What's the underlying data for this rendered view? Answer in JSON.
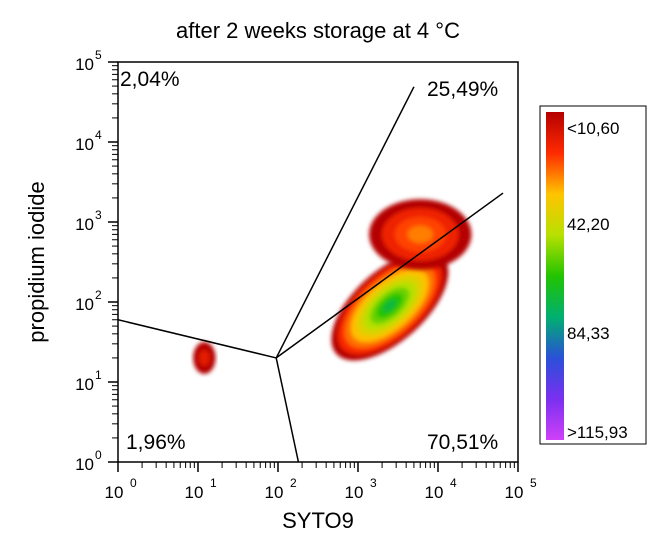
{
  "chart_data": {
    "type": "heatmap",
    "title": "after 2 weeks storage at 4 °C",
    "xlabel": "SYTO9",
    "ylabel": "propidium iodide",
    "x_scale": "log",
    "y_scale": "log",
    "xlim": [
      1,
      100000
    ],
    "ylim": [
      1,
      100000
    ],
    "x_ticks": [
      {
        "value": 1,
        "base": "10",
        "exp": "0"
      },
      {
        "value": 10,
        "base": "10",
        "exp": "1"
      },
      {
        "value": 100,
        "base": "10",
        "exp": "2"
      },
      {
        "value": 1000,
        "base": "10",
        "exp": "3"
      },
      {
        "value": 10000,
        "base": "10",
        "exp": "4"
      },
      {
        "value": 100000,
        "base": "10",
        "exp": "5"
      }
    ],
    "y_ticks": [
      {
        "value": 1,
        "base": "10",
        "exp": "0"
      },
      {
        "value": 10,
        "base": "10",
        "exp": "1"
      },
      {
        "value": 100,
        "base": "10",
        "exp": "2"
      },
      {
        "value": 1000,
        "base": "10",
        "exp": "3"
      },
      {
        "value": 10000,
        "base": "10",
        "exp": "4"
      },
      {
        "value": 100000,
        "base": "10",
        "exp": "5"
      }
    ],
    "gate_center": [
      95,
      20
    ],
    "gate_lines": [
      {
        "to": [
          1,
          60
        ]
      },
      {
        "to": [
          180,
          1
        ]
      },
      {
        "to": [
          65000,
          2300
        ]
      },
      {
        "to": [
          5000,
          49000
        ]
      }
    ],
    "quadrants": [
      {
        "label": "2,04%",
        "position": "top-left"
      },
      {
        "label": "25,49%",
        "position": "top-right"
      },
      {
        "label": "1,96%",
        "position": "bottom-left"
      },
      {
        "label": "70,51%",
        "position": "bottom-right"
      }
    ],
    "clusters": [
      {
        "x": 3000,
        "y": 100,
        "spread_x": 0.22,
        "spread_y": 0.18,
        "rotation_deg": -42,
        "level": 1.0
      },
      {
        "x": 2500,
        "y": 90,
        "spread_x": 0.45,
        "spread_y": 0.22,
        "rotation_deg": -42,
        "level": 0.55
      },
      {
        "x": 6000,
        "y": 700,
        "spread_x": 0.32,
        "spread_y": 0.22,
        "rotation_deg": 0,
        "level": 0.15
      },
      {
        "x": 12,
        "y": 20,
        "spread_x": 0.07,
        "spread_y": 0.1,
        "rotation_deg": 0,
        "level": 0.03
      }
    ],
    "colorbar": {
      "labels": [
        "<10,60",
        "42,20",
        "84,33",
        ">115,93"
      ],
      "values": [
        10.6,
        42.2,
        84.33,
        115.93
      ],
      "colors": [
        "#b40000",
        "#ff2a00",
        "#ffc400",
        "#b8e000",
        "#22c400",
        "#00b070",
        "#2a50d8",
        "#7a30f0",
        "#d040f8"
      ]
    }
  }
}
